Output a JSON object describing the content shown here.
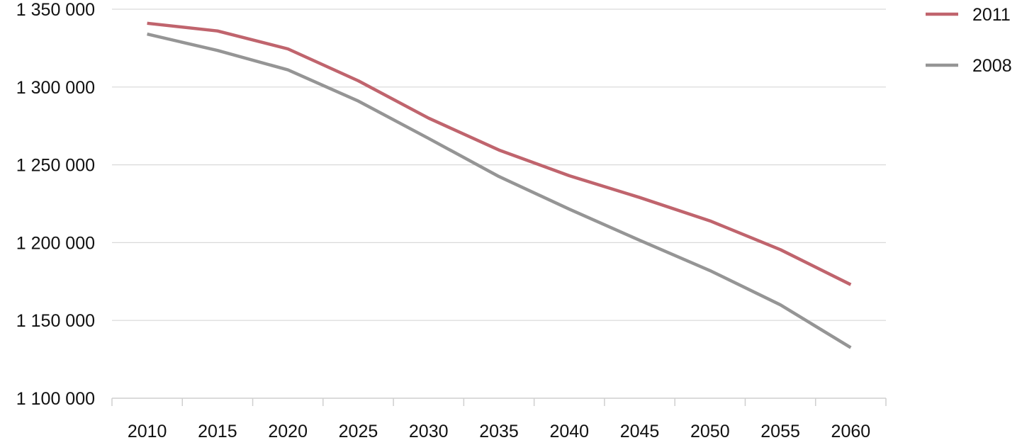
{
  "chart_data": {
    "type": "line",
    "title": "",
    "xlabel": "",
    "ylabel": "",
    "x": [
      "2010",
      "2015",
      "2020",
      "2025",
      "2030",
      "2035",
      "2040",
      "2045",
      "2050",
      "2055",
      "2060"
    ],
    "ylim": [
      1100000,
      1350000
    ],
    "yticks": [
      1100000,
      1150000,
      1200000,
      1250000,
      1300000,
      1350000
    ],
    "ytick_labels": [
      "1 100 000",
      "1 150 000",
      "1 200 000",
      "1 250 000",
      "1 300 000",
      "1 350 000"
    ],
    "grid": true,
    "legend_position": "top-right",
    "series": [
      {
        "name": "2011",
        "color": "#c0646d",
        "values": [
          1341000,
          1336000,
          1324500,
          1304000,
          1280000,
          1259500,
          1243000,
          1229000,
          1214000,
          1195500,
          1173000
        ]
      },
      {
        "name": "2008",
        "color": "#959595",
        "values": [
          1334000,
          1323500,
          1311000,
          1291000,
          1267000,
          1242500,
          1221500,
          1201500,
          1182000,
          1160000,
          1132500
        ]
      }
    ]
  }
}
